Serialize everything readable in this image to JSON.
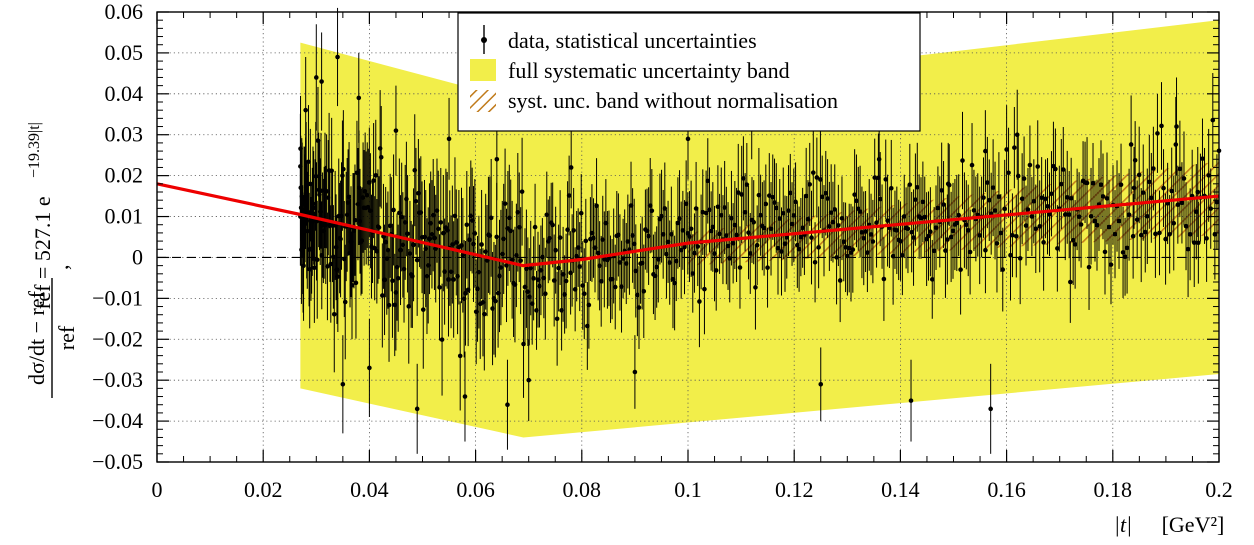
{
  "chart_data": {
    "type": "scatter",
    "xlim": [
      0,
      0.2
    ],
    "ylim": [
      -0.05,
      0.06
    ],
    "x_ticks": [
      "0",
      "0.02",
      "0.04",
      "0.06",
      "0.08",
      "0.1",
      "0.12",
      "0.14",
      "0.16",
      "0.18",
      "0.2"
    ],
    "y_ticks": [
      "−0.05",
      "−0.04",
      "−0.03",
      "−0.02",
      "−0.01",
      "0",
      "0.01",
      "0.02",
      "0.03",
      "0.04",
      "0.05",
      "0.06"
    ],
    "xlabel": {
      "var": "|t|",
      "unit": "[GeV²]"
    },
    "ylabel": {
      "numerator": "dσ/dt − ref",
      "denominator": "ref",
      "separator": ",",
      "ref_prefix": "ref = 527.1 e",
      "ref_exponent": "−19.39|t|"
    },
    "grid": true,
    "zero_line": "dashed",
    "legend": {
      "placement": "top-center",
      "entries": [
        "data, statistical uncertainties",
        "full systematic uncertainty band",
        "syst. unc. band without normalisation"
      ]
    },
    "colors": {
      "band": "#f2ee4a",
      "hatch": "#c07a1a",
      "fit": "#ee0000",
      "data": "#000000"
    },
    "full_systematic_band": {
      "t": [
        0.027,
        0.069,
        0.2
      ],
      "upper": [
        0.0525,
        0.038,
        0.058
      ],
      "lower": [
        -0.032,
        -0.044,
        -0.0285
      ]
    },
    "normalisation_free_band": {
      "t": [
        0.1,
        0.2
      ],
      "upper": [
        0.006,
        0.0235
      ],
      "lower": [
        -0.002,
        0.0055
      ]
    },
    "fit_curve": {
      "t": [
        0.0,
        0.027,
        0.069,
        0.08,
        0.1,
        0.2
      ],
      "y": [
        0.018,
        0.0105,
        -0.002,
        -0.0005,
        0.0035,
        0.015
      ]
    },
    "data_series": {
      "name": "data, statistical uncertainties",
      "t_range": [
        0.027,
        0.2
      ],
      "points": 600,
      "rows": [
        {
          "t": 0.027,
          "y": 0.01,
          "err": 0.012
        },
        {
          "t": 0.028,
          "y": 0.036,
          "err": 0.013
        },
        {
          "t": 0.03,
          "y": 0.044,
          "err": 0.013
        },
        {
          "t": 0.031,
          "y": 0.043,
          "err": 0.012
        },
        {
          "t": 0.034,
          "y": 0.049,
          "err": 0.012
        },
        {
          "t": 0.035,
          "y": -0.031,
          "err": 0.012
        },
        {
          "t": 0.038,
          "y": 0.039,
          "err": 0.011
        },
        {
          "t": 0.04,
          "y": -0.027,
          "err": 0.012
        },
        {
          "t": 0.045,
          "y": 0.031,
          "err": 0.011
        },
        {
          "t": 0.049,
          "y": -0.037,
          "err": 0.011
        },
        {
          "t": 0.055,
          "y": 0.029,
          "err": 0.01
        },
        {
          "t": 0.058,
          "y": -0.034,
          "err": 0.011
        },
        {
          "t": 0.064,
          "y": 0.024,
          "err": 0.01
        },
        {
          "t": 0.066,
          "y": -0.036,
          "err": 0.011
        },
        {
          "t": 0.07,
          "y": -0.03,
          "err": 0.01
        },
        {
          "t": 0.078,
          "y": 0.022,
          "err": 0.01
        },
        {
          "t": 0.09,
          "y": -0.028,
          "err": 0.009
        },
        {
          "t": 0.1,
          "y": 0.029,
          "err": 0.01
        },
        {
          "t": 0.112,
          "y": 0.033,
          "err": 0.009
        },
        {
          "t": 0.125,
          "y": -0.031,
          "err": 0.009
        },
        {
          "t": 0.136,
          "y": 0.024,
          "err": 0.009
        },
        {
          "t": 0.142,
          "y": -0.035,
          "err": 0.01
        },
        {
          "t": 0.149,
          "y": 0.018,
          "err": 0.01
        },
        {
          "t": 0.156,
          "y": 0.026,
          "err": 0.01
        },
        {
          "t": 0.157,
          "y": -0.037,
          "err": 0.011
        },
        {
          "t": 0.162,
          "y": 0.03,
          "err": 0.011
        },
        {
          "t": 0.172,
          "y": -0.006,
          "err": 0.01
        },
        {
          "t": 0.184,
          "y": 0.017,
          "err": 0.01
        },
        {
          "t": 0.192,
          "y": 0.032,
          "err": 0.012
        },
        {
          "t": 0.196,
          "y": 0.016,
          "err": 0.011
        }
      ]
    }
  }
}
